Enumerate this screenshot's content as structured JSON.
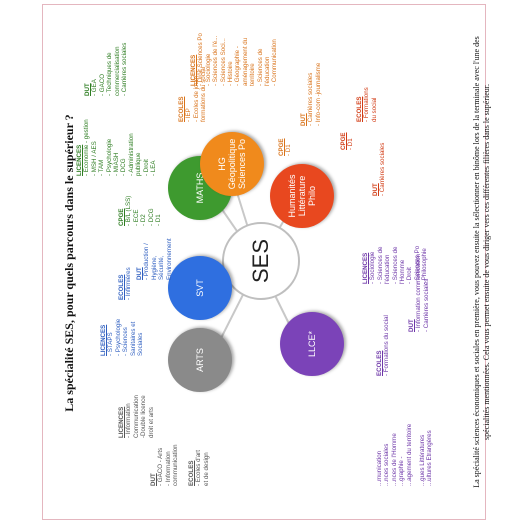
{
  "title": "La spécialité SES, pour quels parcours dans le supérieur ?",
  "footer": {
    "line1": "La spécialité sciences économiques et sociales en première, vous pouvez ensuite la sélectionner en binôme lors de la terminale avec l'une des",
    "line2": "spécialités mentionnées. Cela vous permet ensuite de vous diriger vers ces différentes filières dans le supérieur."
  },
  "center": {
    "label": "SES"
  },
  "colors": {
    "arts": "#8a8a8a",
    "svt": "#2f6fe0",
    "maths": "#3e9a2f",
    "hg": "#f08a1c",
    "humanites": "#e8481f",
    "llce": "#7b43b8",
    "spoke": "#c8c8c8"
  },
  "nodes": {
    "arts": "ARTS",
    "svt": "SVT",
    "maths": "MATHS",
    "hg_line1": "HG",
    "hg_line2": "Géopolitique",
    "hg_line3": "Sciences Po",
    "hum_line1": "Humanités",
    "hum_line2": "Littérature",
    "hum_line3": "Philo",
    "llce": "LLCE*"
  },
  "arts_blocks": {
    "licences": {
      "head": "LICENCES",
      "l1": "- Information",
      "l2": "Communication",
      "l3": "-Double licence",
      "l4": "droit et arts"
    },
    "dut": {
      "head": "DUT",
      "l1": "- GACO - Arts",
      "l2": "- Information",
      "l3": "communication"
    },
    "ecoles": {
      "head": "ECOLES",
      "l1": "- Ecoles d'art",
      "l2": "et de design"
    }
  },
  "svt_blocks": {
    "licences": {
      "head": "LICENCES",
      "l1": "- STAPS",
      "l2": "- Psychologie",
      "l3": "- Sciences",
      "l4": "Sanitaires et",
      "l5": "Sociales"
    },
    "ecoles": {
      "head": "ECOLES",
      "l1": "- Infirmières"
    },
    "dut": {
      "head": "DUT",
      "l1": "- Production /",
      "l2": "Hygiène,",
      "l3": "Sécurité,",
      "l4": "Environnement"
    }
  },
  "maths_blocks": {
    "cpge": {
      "head": "CPGE",
      "l1": "- B/L (LSS)",
      "l2": "- ECE",
      "l3": "- D2",
      "l4": "- DCG",
      "l5": "- D1"
    },
    "licences": {
      "head": "LICENCES",
      "l1": "- Economie - gestion",
      "l2": "- MSH / AES",
      "l3": "- TAM",
      "l4": "- Psychologie",
      "l5": "- MIASH",
      "l6": "- DCG",
      "l7": "- Administration",
      "l8": "publique",
      "l9": "- Droit",
      "l10": "- LEA"
    },
    "dut": {
      "head": "DUT",
      "l1": "- GEA",
      "l2": "- GACO",
      "l3": "- Techniques de",
      "l4": "commercialisation",
      "l5": "- Carrières sociales"
    }
  },
  "hg_blocks": {
    "ecoles": {
      "head": "ECOLES",
      "l1": "- IEP",
      "l2": "- Ecoles de journ...",
      "l3": "formations du social"
    },
    "licences": {
      "head": "LICENCES",
      "l1": "- Droit Sciences Po",
      "l2": "- Sociologie",
      "l3": "- Sciences de l'é...",
      "l4": "- Sciences Soci...",
      "l5": "- Histoire",
      "l6": "- Géographie - ",
      "l7": "aménagement du",
      "l8": "territoire",
      "l9": "- Sciences de",
      "l10": "l'éducation",
      "l11": "- Communication"
    },
    "cpge": {
      "head": "CPGE",
      "l1": "- D1"
    },
    "dut": {
      "head": "DUT",
      "l1": "- Carrières sociales",
      "l2": "- Info-com -journalisme"
    }
  },
  "hum_blocks": {
    "cpge": {
      "head": "CPGE",
      "l1": "- D1"
    },
    "ecoles": {
      "head": "ECOLES",
      "l1": "- Formations",
      "l2": "du social"
    },
    "dut": {
      "head": "DUT",
      "l1": "- Carrières sociales"
    }
  },
  "llce_blocks": {
    "licences": {
      "head": "LICENCES",
      "l1": "- Sociologie",
      "l2": "- Sciences de",
      "l3": "l'éducation",
      "l4": "- Sciences de",
      "l5": "l'Homme",
      "l6": "- Droit",
      "l7": "- Sciences Po",
      "l8": "- Philosophie"
    },
    "dut": {
      "head": "DUT",
      "l1": "- Information communication",
      "l2": "- Carrières sociales"
    },
    "ecoles": {
      "head": "ECOLES",
      "l1": "- Formations du social"
    },
    "edge": {
      "l1": "...munication",
      "l2": "...nces sociales",
      "l3": "...nces de l'Homme",
      "l4": "...graphie -",
      "l5": "...agement du territoire",
      "l6": "...gues Littératures",
      "l7": "...ultures Etrangères"
    }
  }
}
